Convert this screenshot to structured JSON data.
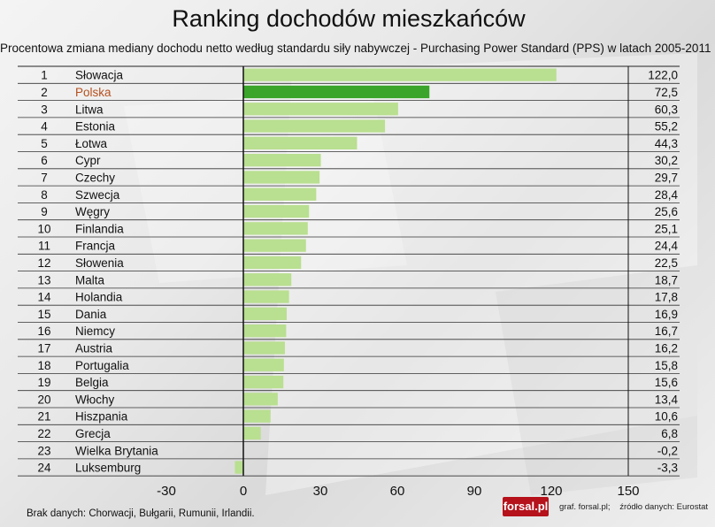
{
  "title": "Ranking dochodów mieszkańców",
  "subtitle": "Procentowa zmiana mediany dochodu netto według standardu siły nabywczej - Purchasing Power Standard (PPS) w latach 2005-2011",
  "footnote": "Brak danych: Chorwacji, Bułgarii, Rumunii, Irlandii.",
  "logo_text": "forsal.pl",
  "credit_graphic": "graf. forsal.pl;",
  "credit_source": "źródło danych: Eurostat",
  "colors": {
    "bar": "#b9df90",
    "bar_highlight": "#3aa52a",
    "highlight_label": "#b5501e"
  },
  "chart_data": {
    "type": "bar",
    "orientation": "horizontal",
    "highlight": "Polska",
    "xlim": [
      -30,
      150
    ],
    "xticks": [
      -30,
      0,
      30,
      60,
      90,
      120,
      150
    ],
    "rows": [
      {
        "rank": "1",
        "country": "Słowacja",
        "value": 122.0,
        "label": "122,0"
      },
      {
        "rank": "2",
        "country": "Polska",
        "value": 72.5,
        "label": "72,5"
      },
      {
        "rank": "3",
        "country": "Litwa",
        "value": 60.3,
        "label": "60,3"
      },
      {
        "rank": "4",
        "country": "Estonia",
        "value": 55.2,
        "label": "55,2"
      },
      {
        "rank": "5",
        "country": "Łotwa",
        "value": 44.3,
        "label": "44,3"
      },
      {
        "rank": "6",
        "country": "Cypr",
        "value": 30.2,
        "label": "30,2"
      },
      {
        "rank": "7",
        "country": "Czechy",
        "value": 29.7,
        "label": "29,7"
      },
      {
        "rank": "8",
        "country": "Szwecja",
        "value": 28.4,
        "label": "28,4"
      },
      {
        "rank": "9",
        "country": "Węgry",
        "value": 25.6,
        "label": "25,6"
      },
      {
        "rank": "10",
        "country": "Finlandia",
        "value": 25.1,
        "label": "25,1"
      },
      {
        "rank": "11",
        "country": "Francja",
        "value": 24.4,
        "label": "24,4"
      },
      {
        "rank": "12",
        "country": "Słowenia",
        "value": 22.5,
        "label": "22,5"
      },
      {
        "rank": "13",
        "country": "Malta",
        "value": 18.7,
        "label": "18,7"
      },
      {
        "rank": "14",
        "country": "Holandia",
        "value": 17.8,
        "label": "17,8"
      },
      {
        "rank": "15",
        "country": "Dania",
        "value": 16.9,
        "label": "16,9"
      },
      {
        "rank": "16",
        "country": "Niemcy",
        "value": 16.7,
        "label": "16,7"
      },
      {
        "rank": "17",
        "country": "Austria",
        "value": 16.2,
        "label": "16,2"
      },
      {
        "rank": "18",
        "country": "Portugalia",
        "value": 15.8,
        "label": "15,8"
      },
      {
        "rank": "19",
        "country": "Belgia",
        "value": 15.6,
        "label": "15,6"
      },
      {
        "rank": "20",
        "country": "Włochy",
        "value": 13.4,
        "label": "13,4"
      },
      {
        "rank": "21",
        "country": "Hiszpania",
        "value": 10.6,
        "label": "10,6"
      },
      {
        "rank": "22",
        "country": "Grecja",
        "value": 6.8,
        "label": "6,8"
      },
      {
        "rank": "23",
        "country": "Wielka Brytania",
        "value": -0.2,
        "label": "-0,2"
      },
      {
        "rank": "24",
        "country": "Luksemburg",
        "value": -3.3,
        "label": "-3,3"
      }
    ]
  }
}
